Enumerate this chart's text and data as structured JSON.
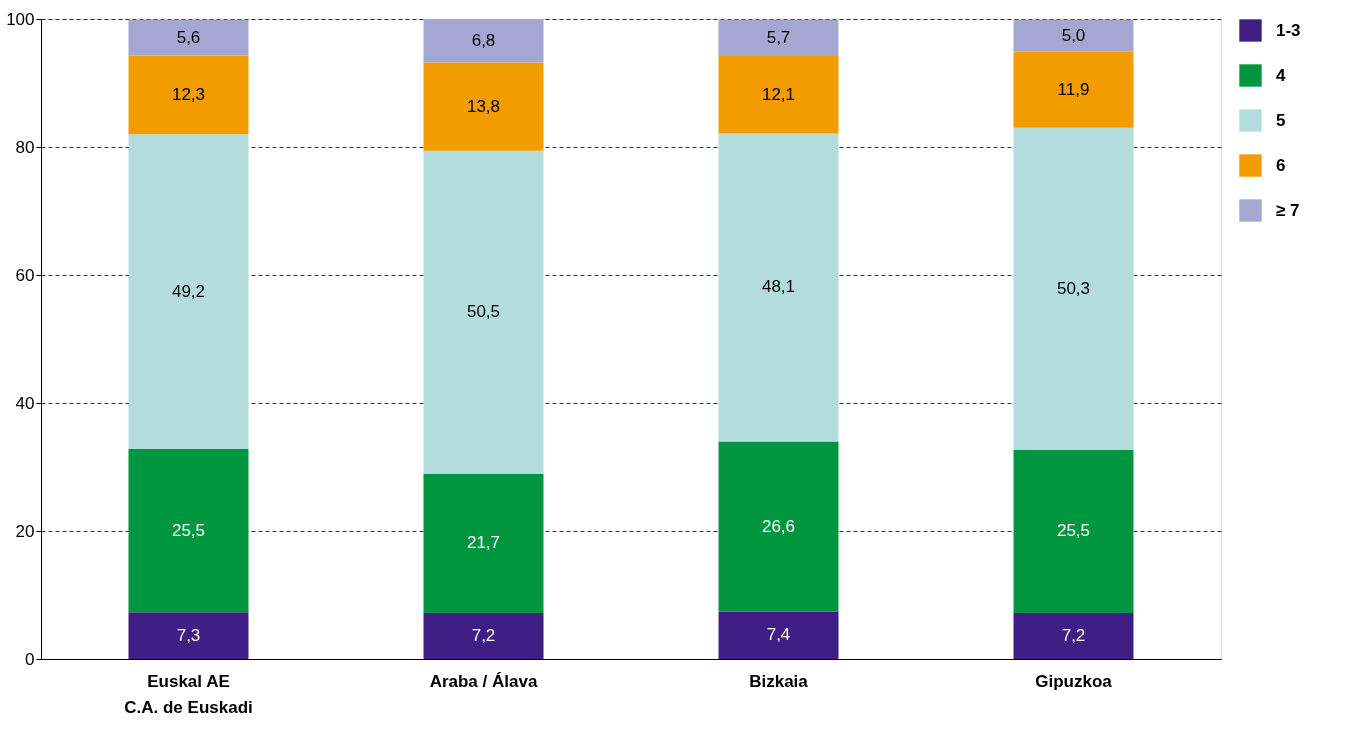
{
  "chart_data": {
    "type": "bar",
    "stacked": true,
    "categories": [
      "Euskal AE\nC.A. de Euskadi",
      "Araba / Álava",
      "Bizkaia",
      "Gipuzkoa"
    ],
    "series": [
      {
        "name": "1-3",
        "color": "#3f1e85",
        "values": [
          7.3,
          7.2,
          7.4,
          7.2
        ],
        "value_labels": [
          "7,3",
          "7,2",
          "7,4",
          "7,2"
        ]
      },
      {
        "name": "4",
        "color": "#009640",
        "values": [
          25.5,
          21.7,
          26.6,
          25.5
        ],
        "value_labels": [
          "25,5",
          "21,7",
          "26,6",
          "25,5"
        ]
      },
      {
        "name": "5",
        "color": "#b3dcdc",
        "values": [
          49.2,
          50.5,
          48.1,
          50.3
        ],
        "value_labels": [
          "49,2",
          "50,5",
          "48,1",
          "50,3"
        ]
      },
      {
        "name": "6",
        "color": "#f39c00",
        "values": [
          12.3,
          13.8,
          12.1,
          11.9
        ],
        "value_labels": [
          "12,3",
          "13,8",
          "12,1",
          "11,9"
        ]
      },
      {
        "name": "≥ 7",
        "color": "#a6a6d2",
        "values": [
          5.6,
          6.8,
          5.7,
          5.0
        ],
        "value_labels": [
          "5,6",
          "6,8",
          "5,7",
          "5,0"
        ]
      }
    ],
    "ylim": [
      0,
      100
    ],
    "yticks": [
      0,
      20,
      40,
      60,
      80,
      100
    ],
    "grid": "y",
    "legend": "right"
  }
}
